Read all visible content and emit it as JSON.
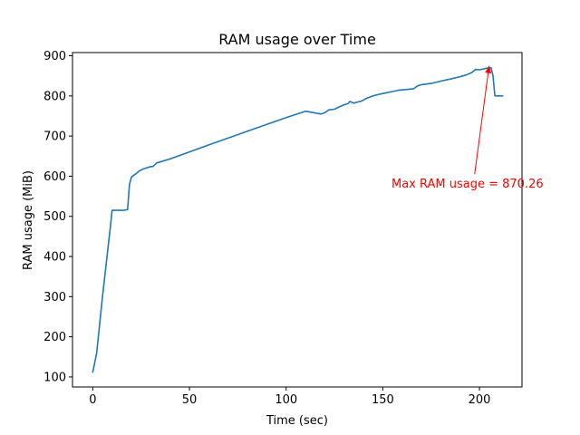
{
  "chart_data": {
    "type": "line",
    "title": "RAM usage over Time",
    "xlabel": "Time (sec)",
    "ylabel": "RAM usage (MiB)",
    "xlim": [
      -10.5,
      222
    ],
    "ylim": [
      75,
      908
    ],
    "xticks": [
      0,
      50,
      100,
      150,
      200
    ],
    "yticks": [
      100,
      200,
      300,
      400,
      500,
      600,
      700,
      800,
      900
    ],
    "grid": false,
    "line_color": "#1f77b4",
    "series": [
      {
        "x": [
          0,
          2,
          5,
          9,
          10,
          12,
          14,
          16,
          18,
          19,
          20,
          22,
          24,
          26,
          28,
          30,
          31,
          32,
          33,
          40,
          60,
          80,
          100,
          110,
          118,
          120,
          122,
          125,
          128,
          130,
          132,
          133,
          135,
          137,
          139,
          142,
          145,
          148,
          150,
          155,
          158,
          162,
          166,
          168,
          170,
          175,
          180,
          185,
          190,
          193,
          196,
          198,
          200,
          203,
          205,
          206,
          207,
          208,
          210,
          212
        ],
        "y": [
          112,
          160,
          300,
          470,
          515,
          515,
          515,
          515,
          517,
          580,
          598,
          605,
          613,
          618,
          621,
          624,
          624,
          628,
          633,
          643,
          678,
          712,
          746,
          762,
          755,
          758,
          765,
          767,
          774,
          778,
          781,
          786,
          782,
          785,
          787,
          795,
          800,
          804,
          806,
          811,
          814,
          816,
          818,
          825,
          828,
          831,
          837,
          842,
          848,
          852,
          858,
          866,
          865,
          868,
          870.26,
          870,
          850,
          800,
          800,
          800
        ]
      }
    ],
    "annotation": {
      "text": "Max RAM usage = 870.26",
      "color": "#ff0000",
      "arrow_from": [
        197.5,
        605
      ],
      "arrow_to": [
        205,
        875
      ]
    }
  }
}
